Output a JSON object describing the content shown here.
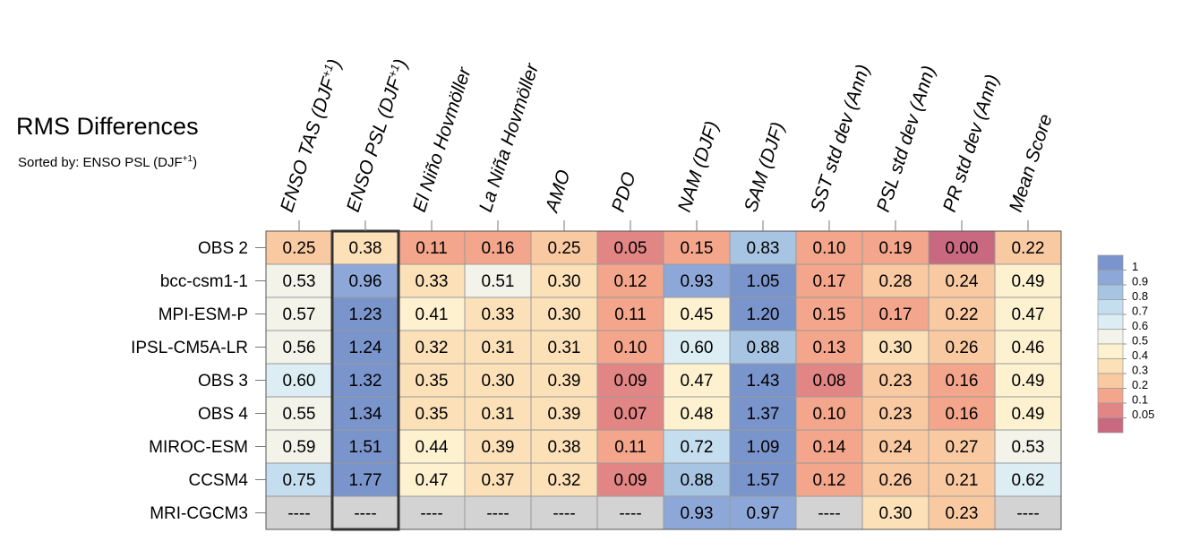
{
  "chart_data": {
    "type": "heatmap",
    "title": "RMS Differences",
    "subtitle": {
      "prefix": "Sorted by: ",
      "text": "ENSO PSL (DJF",
      "sup": "+1",
      "suffix": ")"
    },
    "columns": [
      {
        "text": "ENSO TAS (DJF",
        "sup": "+1",
        "suffix": ")"
      },
      {
        "text": "ENSO PSL (DJF",
        "sup": "+1",
        "suffix": ")"
      },
      {
        "text": "El Niño Hovmöller"
      },
      {
        "text": "La Niña Hovmöller"
      },
      {
        "text": "AMO"
      },
      {
        "text": "PDO"
      },
      {
        "text": "NAM (DJF)"
      },
      {
        "text": "SAM (DJF)"
      },
      {
        "text": "SST std dev (Ann)"
      },
      {
        "text": "PSL std dev (Ann)"
      },
      {
        "text": "PR std dev (Ann)"
      },
      {
        "text": "Mean Score"
      }
    ],
    "rows": [
      "OBS 2",
      "bcc-csm1-1",
      "MPI-ESM-P",
      "IPSL-CM5A-LR",
      "OBS 3",
      "OBS 4",
      "MIROC-ESM",
      "CCSM4",
      "MRI-CGCM3"
    ],
    "values": [
      [
        "0.25",
        "0.38",
        "0.11",
        "0.16",
        "0.25",
        "0.05",
        "0.15",
        "0.83",
        "0.10",
        "0.19",
        "0.00",
        "0.22"
      ],
      [
        "0.53",
        "0.96",
        "0.33",
        "0.51",
        "0.30",
        "0.12",
        "0.93",
        "1.05",
        "0.17",
        "0.28",
        "0.24",
        "0.49"
      ],
      [
        "0.57",
        "1.23",
        "0.41",
        "0.33",
        "0.30",
        "0.11",
        "0.45",
        "1.20",
        "0.15",
        "0.17",
        "0.22",
        "0.47"
      ],
      [
        "0.56",
        "1.24",
        "0.32",
        "0.31",
        "0.31",
        "0.10",
        "0.60",
        "0.88",
        "0.13",
        "0.30",
        "0.26",
        "0.46"
      ],
      [
        "0.60",
        "1.32",
        "0.35",
        "0.30",
        "0.39",
        "0.09",
        "0.47",
        "1.43",
        "0.08",
        "0.23",
        "0.16",
        "0.49"
      ],
      [
        "0.55",
        "1.34",
        "0.35",
        "0.31",
        "0.39",
        "0.07",
        "0.48",
        "1.37",
        "0.10",
        "0.23",
        "0.16",
        "0.49"
      ],
      [
        "0.59",
        "1.51",
        "0.44",
        "0.39",
        "0.38",
        "0.11",
        "0.72",
        "1.09",
        "0.14",
        "0.24",
        "0.27",
        "0.53"
      ],
      [
        "0.75",
        "1.77",
        "0.47",
        "0.37",
        "0.32",
        "0.09",
        "0.88",
        "1.57",
        "0.12",
        "0.26",
        "0.21",
        "0.62"
      ],
      [
        "----",
        "----",
        "----",
        "----",
        "----",
        "----",
        "0.93",
        "0.97",
        "----",
        "0.30",
        "0.23",
        "----"
      ]
    ],
    "sorted_column_index": 1,
    "missing_color": "#d3d3d3",
    "colorbar": {
      "labels": [
        "1",
        "0.9",
        "0.8",
        "0.7",
        "0.6",
        "0.5",
        "0.4",
        "0.3",
        "0.2",
        "0.1",
        "0.05"
      ],
      "thresholds": [
        0.05,
        0.1,
        0.2,
        0.3,
        0.4,
        0.5,
        0.6,
        0.7,
        0.8,
        0.9,
        1
      ],
      "colors": [
        "#c9697f",
        "#e28585",
        "#f3a68b",
        "#f9c9a2",
        "#fbe0b8",
        "#fdf1d0",
        "#f3f3ea",
        "#dceef4",
        "#c4def0",
        "#a7c4e2",
        "#8da8d8",
        "#7a94cc"
      ]
    }
  }
}
